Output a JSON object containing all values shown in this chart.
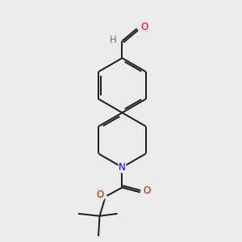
{
  "bg_color": "#ebebeb",
  "bond_color": "#1a1a1a",
  "N_color": "#0000ee",
  "O_color": "#ee0000",
  "H_color": "#3d7a7a",
  "bond_width": 1.4,
  "dbo": 0.08,
  "figsize": [
    3.0,
    3.0
  ],
  "dpi": 100,
  "xlim": [
    0,
    10
  ],
  "ylim": [
    0,
    10
  ]
}
